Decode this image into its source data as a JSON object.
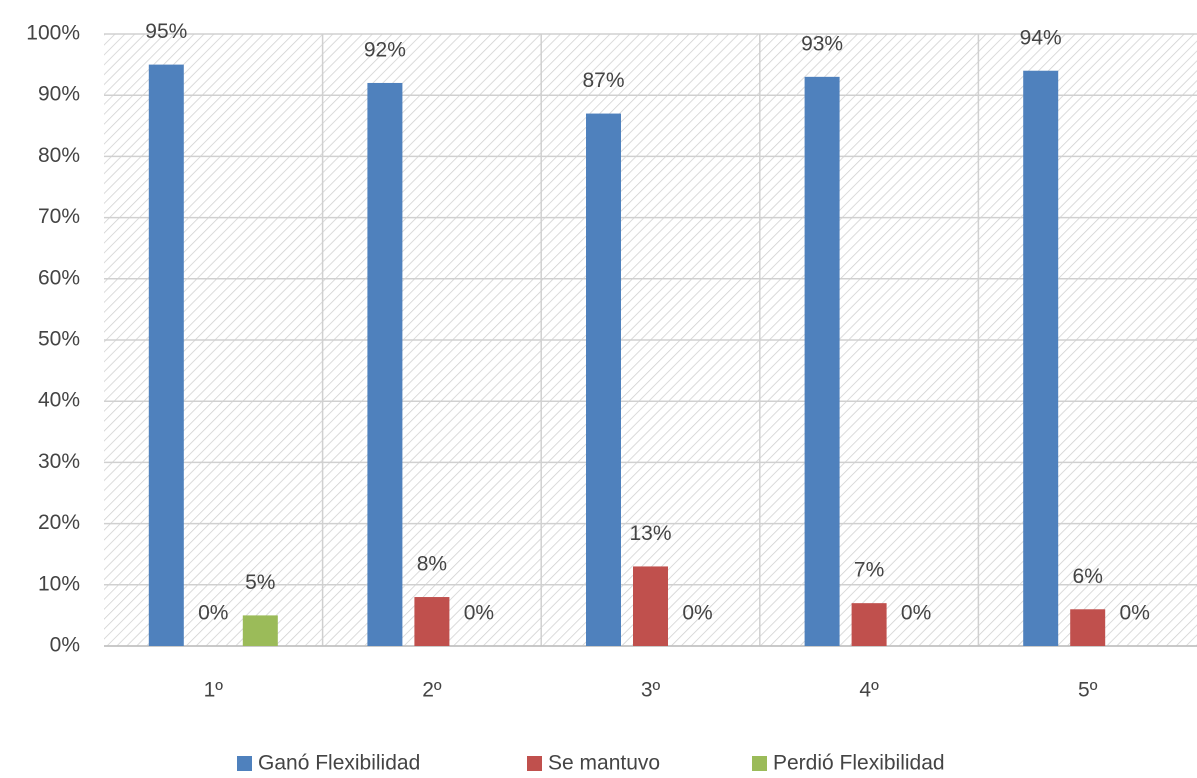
{
  "chart_data": {
    "type": "bar",
    "categories": [
      "1º",
      "2º",
      "3º",
      "4º",
      "5º"
    ],
    "series": [
      {
        "name": "Ganó Flexibilidad",
        "color": "#4f81bd",
        "values": [
          95,
          92,
          87,
          93,
          94
        ],
        "value_labels": [
          "95%",
          "92%",
          "87%",
          "93%",
          "94%"
        ]
      },
      {
        "name": "Se mantuvo",
        "color": "#c0504d",
        "values": [
          0,
          8,
          13,
          7,
          6
        ],
        "value_labels": [
          "0%",
          "8%",
          "13%",
          "7%",
          "6%"
        ]
      },
      {
        "name": "Perdió Flexibilidad",
        "color": "#9bbb59",
        "values": [
          5,
          0,
          0,
          0,
          0
        ],
        "value_labels": [
          "5%",
          "0%",
          "0%",
          "0%",
          "0%"
        ]
      }
    ],
    "ylim": [
      0,
      100
    ],
    "yticks": [
      {
        "value": 0,
        "label": "0%"
      },
      {
        "value": 10,
        "label": "10%"
      },
      {
        "value": 20,
        "label": "20%"
      },
      {
        "value": 30,
        "label": "30%"
      },
      {
        "value": 40,
        "label": "40%"
      },
      {
        "value": 50,
        "label": "50%"
      },
      {
        "value": 60,
        "label": "60%"
      },
      {
        "value": 70,
        "label": "70%"
      },
      {
        "value": 80,
        "label": "80%"
      },
      {
        "value": 90,
        "label": "90%"
      },
      {
        "value": 100,
        "label": "100%"
      }
    ],
    "grid": true,
    "legend": "bottom"
  }
}
